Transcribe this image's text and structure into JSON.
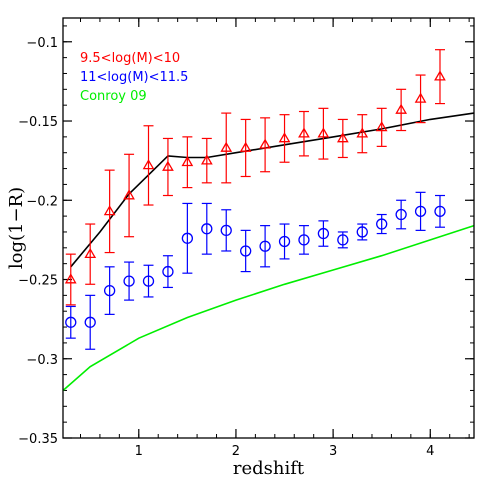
{
  "chart_data": {
    "type": "scatter",
    "xlabel": "redshift",
    "ylabel": "log(1−R)",
    "xlim": [
      0.22,
      4.45
    ],
    "ylim": [
      -0.35,
      -0.085
    ],
    "x_ticks": [
      {
        "value": 1,
        "label": "1"
      },
      {
        "value": 2,
        "label": "2"
      },
      {
        "value": 3,
        "label": "3"
      },
      {
        "value": 4,
        "label": "4"
      }
    ],
    "y_ticks": [
      {
        "value": -0.1,
        "label": "−0.1"
      },
      {
        "value": -0.15,
        "label": "−0.15"
      },
      {
        "value": -0.2,
        "label": "−0.2"
      },
      {
        "value": -0.25,
        "label": "−0.25"
      },
      {
        "value": -0.3,
        "label": "−0.3"
      },
      {
        "value": -0.35,
        "label": "−0.35"
      }
    ],
    "x_minor_step": 0.2,
    "y_minor_step": 0.01,
    "grid": false,
    "legend": {
      "placement": "top-left"
    },
    "series": [
      {
        "name": "9.5<log(M)<10",
        "color": "#ff0000",
        "marker": "triangle",
        "x": [
          0.3,
          0.5,
          0.7,
          0.9,
          1.1,
          1.3,
          1.5,
          1.7,
          1.9,
          2.1,
          2.3,
          2.5,
          2.7,
          2.9,
          3.1,
          3.3,
          3.5,
          3.7,
          3.9,
          4.1
        ],
        "y": [
          -0.25,
          -0.234,
          -0.207,
          -0.197,
          -0.178,
          -0.179,
          -0.176,
          -0.175,
          -0.167,
          -0.167,
          -0.165,
          -0.161,
          -0.158,
          -0.158,
          -0.161,
          -0.158,
          -0.154,
          -0.143,
          -0.136,
          -0.122
        ],
        "err_up": [
          0.016,
          0.019,
          0.026,
          0.026,
          0.025,
          0.018,
          0.016,
          0.014,
          0.022,
          0.018,
          0.017,
          0.015,
          0.014,
          0.016,
          0.012,
          0.012,
          0.012,
          0.013,
          0.015,
          0.017
        ],
        "err_down": [
          0.016,
          0.019,
          0.026,
          0.026,
          0.025,
          0.018,
          0.016,
          0.014,
          0.022,
          0.018,
          0.017,
          0.015,
          0.014,
          0.016,
          0.012,
          0.012,
          0.012,
          0.013,
          0.015,
          0.017
        ]
      },
      {
        "name": "11<log(M)<11.5",
        "color": "#0000ff",
        "marker": "circle",
        "x": [
          0.3,
          0.5,
          0.7,
          0.9,
          1.1,
          1.3,
          1.5,
          1.7,
          1.9,
          2.1,
          2.3,
          2.5,
          2.7,
          2.9,
          3.1,
          3.3,
          3.5,
          3.7,
          3.9,
          4.1
        ],
        "y": [
          -0.277,
          -0.277,
          -0.257,
          -0.251,
          -0.251,
          -0.245,
          -0.224,
          -0.218,
          -0.219,
          -0.232,
          -0.229,
          -0.226,
          -0.225,
          -0.221,
          -0.225,
          -0.22,
          -0.215,
          -0.209,
          -0.207,
          -0.207
        ],
        "err_up": [
          0.01,
          0.017,
          0.015,
          0.012,
          0.01,
          0.01,
          0.022,
          0.016,
          0.013,
          0.013,
          0.013,
          0.011,
          0.009,
          0.008,
          0.005,
          0.005,
          0.006,
          0.009,
          0.012,
          0.01
        ],
        "err_down": [
          0.01,
          0.017,
          0.015,
          0.012,
          0.01,
          0.01,
          0.022,
          0.016,
          0.013,
          0.013,
          0.013,
          0.011,
          0.009,
          0.008,
          0.005,
          0.005,
          0.006,
          0.009,
          0.012,
          0.01
        ]
      }
    ],
    "lines": [
      {
        "name": "Conroy 09",
        "color": "#00ee00",
        "x": [
          0.22,
          0.5,
          1.0,
          1.5,
          2.0,
          2.5,
          3.0,
          3.5,
          4.0,
          4.45
        ],
        "y": [
          -0.32,
          -0.305,
          -0.287,
          -0.274,
          -0.263,
          -0.253,
          -0.244,
          -0.235,
          -0.225,
          -0.216
        ]
      },
      {
        "name": "",
        "color": "#000000",
        "x": [
          0.3,
          0.6,
          0.9,
          1.1,
          1.3,
          1.5,
          1.7,
          2.0,
          2.5,
          3.0,
          3.5,
          4.0,
          4.45
        ],
        "y": [
          -0.242,
          -0.22,
          -0.196,
          -0.184,
          -0.172,
          -0.173,
          -0.173,
          -0.17,
          -0.165,
          -0.16,
          -0.155,
          -0.149,
          -0.145
        ]
      }
    ],
    "legend_entries": [
      {
        "label": "9.5<log(M)<10",
        "color": "#ff0000"
      },
      {
        "label": "11<log(M)<11.5",
        "color": "#0000ff"
      },
      {
        "label": "Conroy 09",
        "color": "#00ee00"
      }
    ]
  }
}
